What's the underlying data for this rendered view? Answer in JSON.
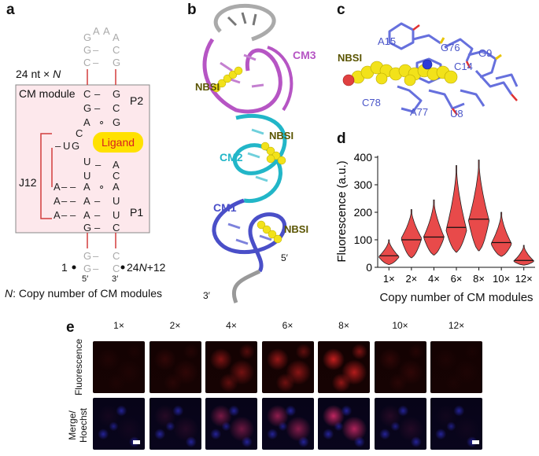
{
  "panels": {
    "a": {
      "letter": "a",
      "length_label": "24 nt × ",
      "length_var": "N",
      "module_label": "CM module",
      "stems": [
        "P2",
        "P1"
      ],
      "junction": "J12",
      "ligand": "Ligand",
      "pos_left": "1",
      "pos_right_prefix": "24",
      "pos_right_var": "N",
      "pos_right_suffix": "+12",
      "five_prime": "5′",
      "three_prime": "3′",
      "caption_var": "N",
      "caption_text": ": Copy number of CM modules",
      "colors": {
        "box_fill": "#fde8ec",
        "box_border": "#888888",
        "ligand_bg": "#ffe100",
        "ligand_text": "#d82020",
        "connector": "#d23c3c",
        "grey_nt": "#aaaaaa"
      }
    },
    "b": {
      "letter": "b",
      "labels": {
        "cm3": "CM3",
        "cm2": "CM2",
        "cm1": "CM1",
        "nbsi_1": "NBSI",
        "nbsi_2": "NBSI",
        "nbsi_3": "NBSI",
        "five": "5′",
        "three": "3′"
      },
      "colors": {
        "cm3": "#b655c4",
        "cm2": "#22b6c8",
        "cm1": "#4a4fc8",
        "tail": "#999999",
        "ligand": "#f2e21a"
      }
    },
    "c": {
      "letter": "c",
      "labels": {
        "nbsi": "NBSI",
        "a15": "A15",
        "g76": "G76",
        "g9": "G9",
        "c14": "C14",
        "c78": "C78",
        "a77": "A77",
        "u8": "U8"
      },
      "colors": {
        "residue": "#6670dd",
        "ligand": "#f2e21a"
      }
    },
    "d": {
      "letter": "d",
      "chart_data": {
        "type": "violin",
        "ylabel": "Fluorescence (a.u.)",
        "xlabel": "Copy number of CM modules",
        "categories": [
          "1×",
          "2×",
          "4×",
          "6×",
          "8×",
          "10×",
          "12×"
        ],
        "medians": [
          42,
          100,
          110,
          145,
          175,
          90,
          25
        ],
        "mins": [
          10,
          35,
          45,
          55,
          60,
          40,
          8
        ],
        "maxs": [
          100,
          210,
          245,
          370,
          390,
          200,
          80
        ],
        "peaks": [
          38,
          105,
          110,
          135,
          170,
          85,
          22
        ],
        "ylim": [
          0,
          400
        ],
        "yticks": [
          0,
          100,
          200,
          300,
          400
        ],
        "color": "#e84a4a"
      }
    },
    "e": {
      "letter": "e",
      "columns": [
        "1×",
        "2×",
        "4×",
        "6×",
        "8×",
        "10×",
        "12×"
      ],
      "rows": [
        "Fluorescence",
        "Merge/ Hoechst"
      ],
      "row_line1": [
        "Fluorescence",
        "Merge/"
      ],
      "row_line2": [
        "",
        "Hoechst"
      ]
    }
  }
}
